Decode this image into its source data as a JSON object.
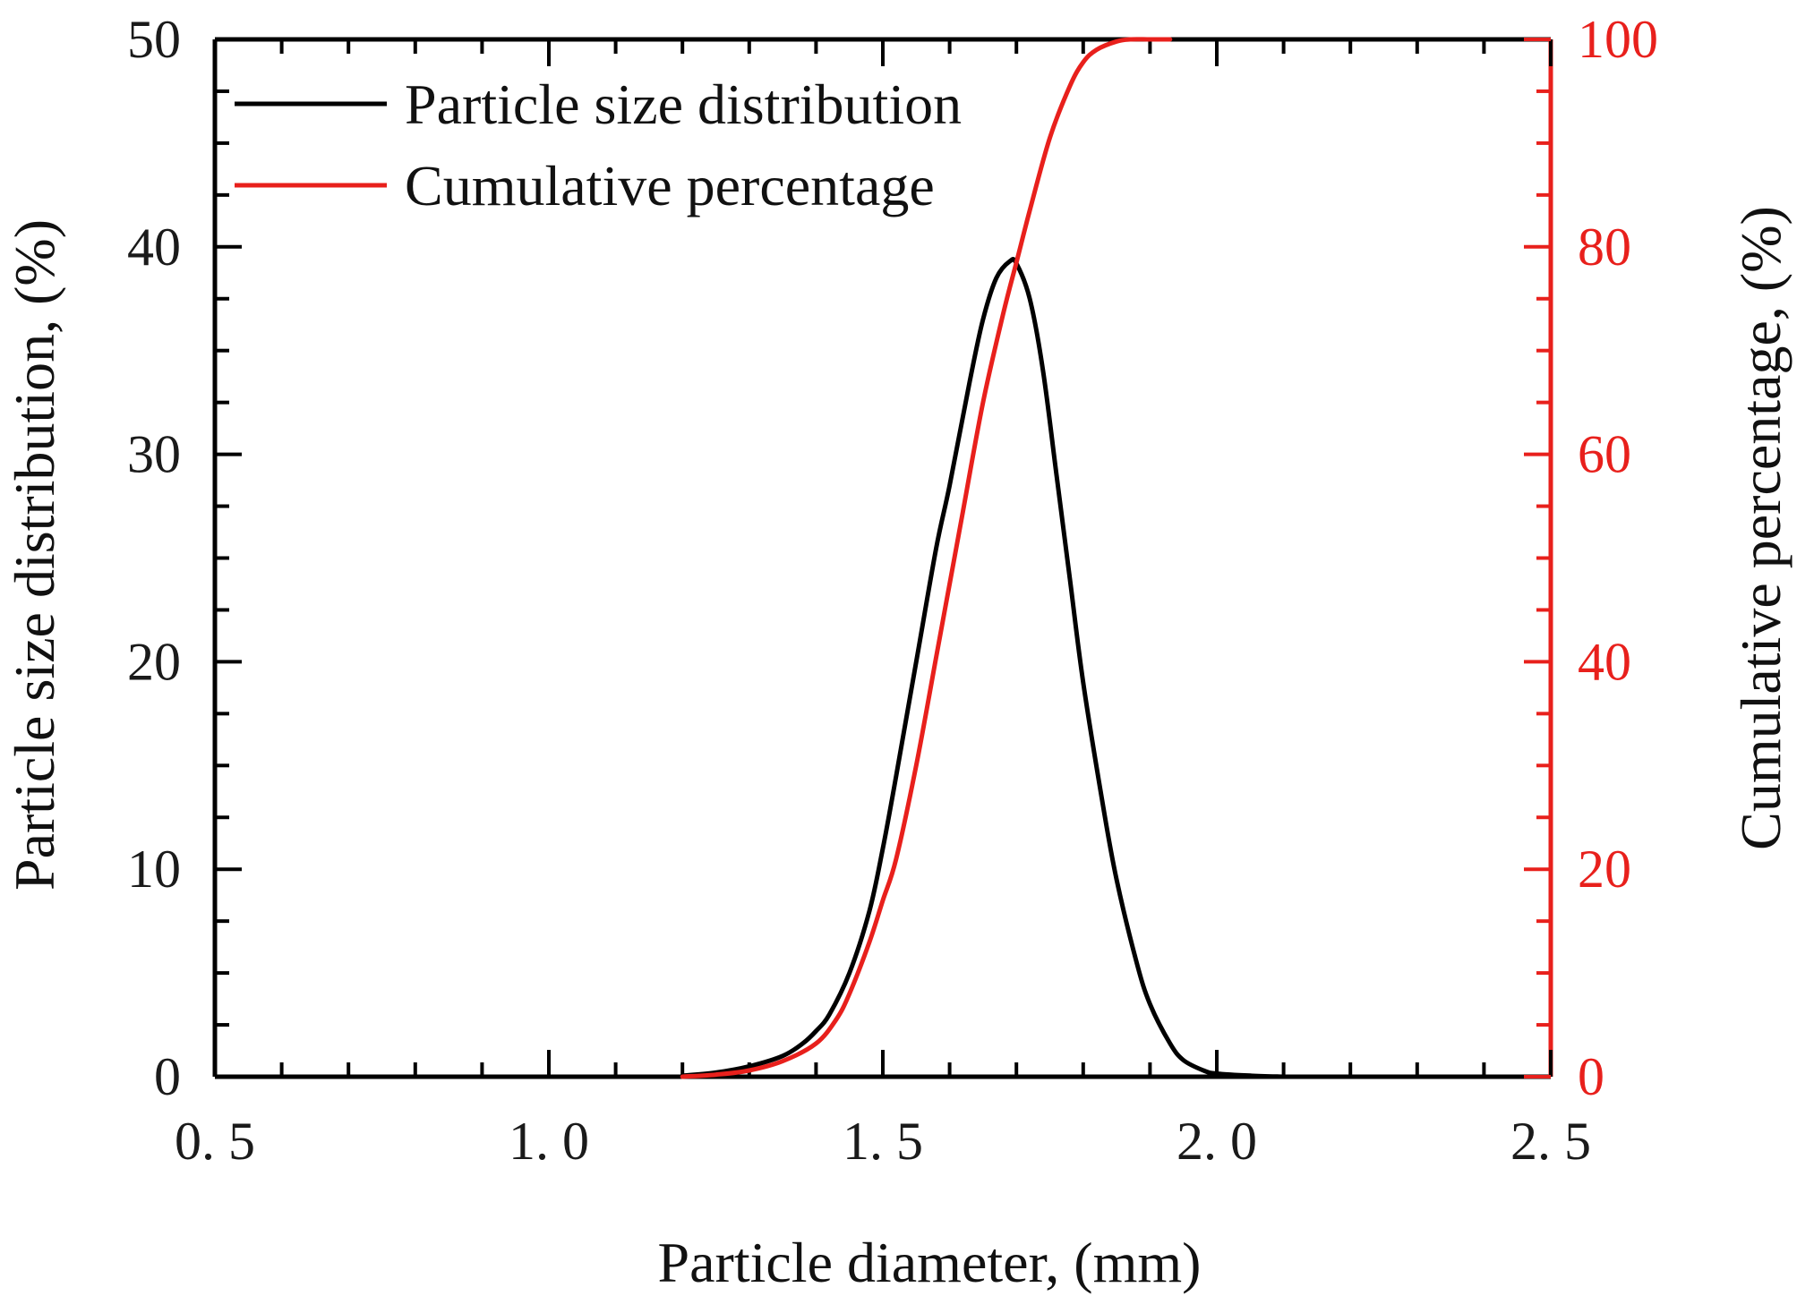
{
  "chart_data": {
    "type": "line",
    "xlabel": "Particle diameter, (mm)",
    "ylabel_left": "Particle size distribution, (%)",
    "ylabel_right": "Cumulative percentage, (%)",
    "xlim": [
      0.5,
      2.5
    ],
    "ylim_left": [
      0,
      50
    ],
    "ylim_right": [
      0,
      100
    ],
    "x_ticks": [
      0.5,
      1.0,
      1.5,
      2.0,
      2.5
    ],
    "x_tick_labels": [
      "0. 5",
      "1. 0",
      "1. 5",
      "2. 0",
      "2. 5"
    ],
    "y_left_ticks": [
      0,
      10,
      20,
      30,
      40,
      50
    ],
    "y_left_tick_labels": [
      "0",
      "10",
      "20",
      "30",
      "40",
      "50"
    ],
    "y_right_ticks": [
      0,
      20,
      40,
      60,
      80,
      100
    ],
    "y_right_tick_labels": [
      "0",
      "20",
      "40",
      "60",
      "80",
      "100"
    ],
    "grid": false,
    "legend_position": "top-left",
    "colors": {
      "distribution": "#000000",
      "cumulative": "#e8201c",
      "right_axis": "#e8201c",
      "left_axis": "#000000"
    },
    "series": [
      {
        "name": "Particle size distribution",
        "axis": "left",
        "color": "#000000",
        "x": [
          1.2,
          1.25,
          1.3,
          1.35,
          1.38,
          1.4,
          1.42,
          1.45,
          1.48,
          1.5,
          1.52,
          1.55,
          1.58,
          1.6,
          1.63,
          1.65,
          1.67,
          1.69,
          1.7,
          1.72,
          1.74,
          1.76,
          1.78,
          1.8,
          1.83,
          1.85,
          1.88,
          1.9,
          1.93,
          1.95,
          1.98,
          2.0,
          2.05,
          2.1
        ],
        "values": [
          0.05,
          0.2,
          0.5,
          1.0,
          1.6,
          2.2,
          3.0,
          5.0,
          8.0,
          11.0,
          14.5,
          20.0,
          25.5,
          28.5,
          33.5,
          36.5,
          38.5,
          39.3,
          39.2,
          37.5,
          34.0,
          29.0,
          24.0,
          19.0,
          13.0,
          9.5,
          5.5,
          3.5,
          1.6,
          0.8,
          0.3,
          0.15,
          0.05,
          0.0
        ]
      },
      {
        "name": "Cumulative percentage",
        "axis": "right",
        "color": "#e8201c",
        "x": [
          1.2,
          1.25,
          1.3,
          1.35,
          1.4,
          1.43,
          1.45,
          1.48,
          1.5,
          1.52,
          1.55,
          1.58,
          1.6,
          1.62,
          1.65,
          1.68,
          1.7,
          1.72,
          1.75,
          1.78,
          1.8,
          1.82,
          1.85,
          1.87,
          1.9,
          1.93
        ],
        "values": [
          0.0,
          0.2,
          0.6,
          1.5,
          3.2,
          5.5,
          8.0,
          13.0,
          17.0,
          21.0,
          30.0,
          40.5,
          47.5,
          54.5,
          65.0,
          73.5,
          78.5,
          83.5,
          90.5,
          95.5,
          97.8,
          99.0,
          99.8,
          100.0,
          100.0,
          100.0
        ]
      }
    ]
  }
}
